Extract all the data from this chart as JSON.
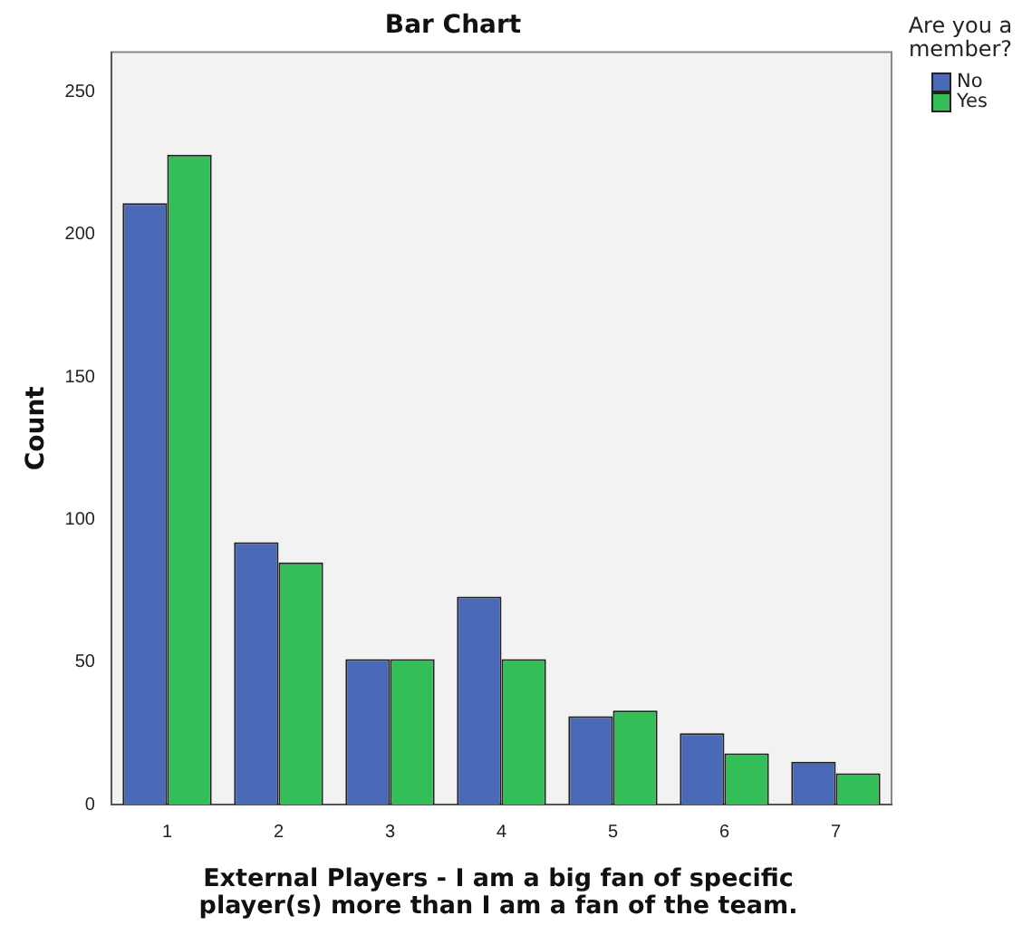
{
  "chart_data": {
    "type": "bar",
    "title": "Bar Chart",
    "xlabel": "External Players - I am a big fan of specific player(s) more than I am a fan of the team.",
    "ylabel": "Count",
    "legend_title": "Are you a member?",
    "legend": "right",
    "categories": [
      "1",
      "2",
      "3",
      "4",
      "5",
      "6",
      "7"
    ],
    "series": [
      {
        "name": "No",
        "color": "#4a69b6",
        "values": [
          211,
          92,
          51,
          73,
          31,
          25,
          15
        ]
      },
      {
        "name": "Yes",
        "color": "#33be57",
        "values": [
          228,
          85,
          51,
          51,
          33,
          18,
          11
        ]
      }
    ],
    "ylim": [
      0,
      264
    ],
    "yticks": [
      0,
      50,
      100,
      150,
      200,
      250
    ],
    "grid": false
  }
}
